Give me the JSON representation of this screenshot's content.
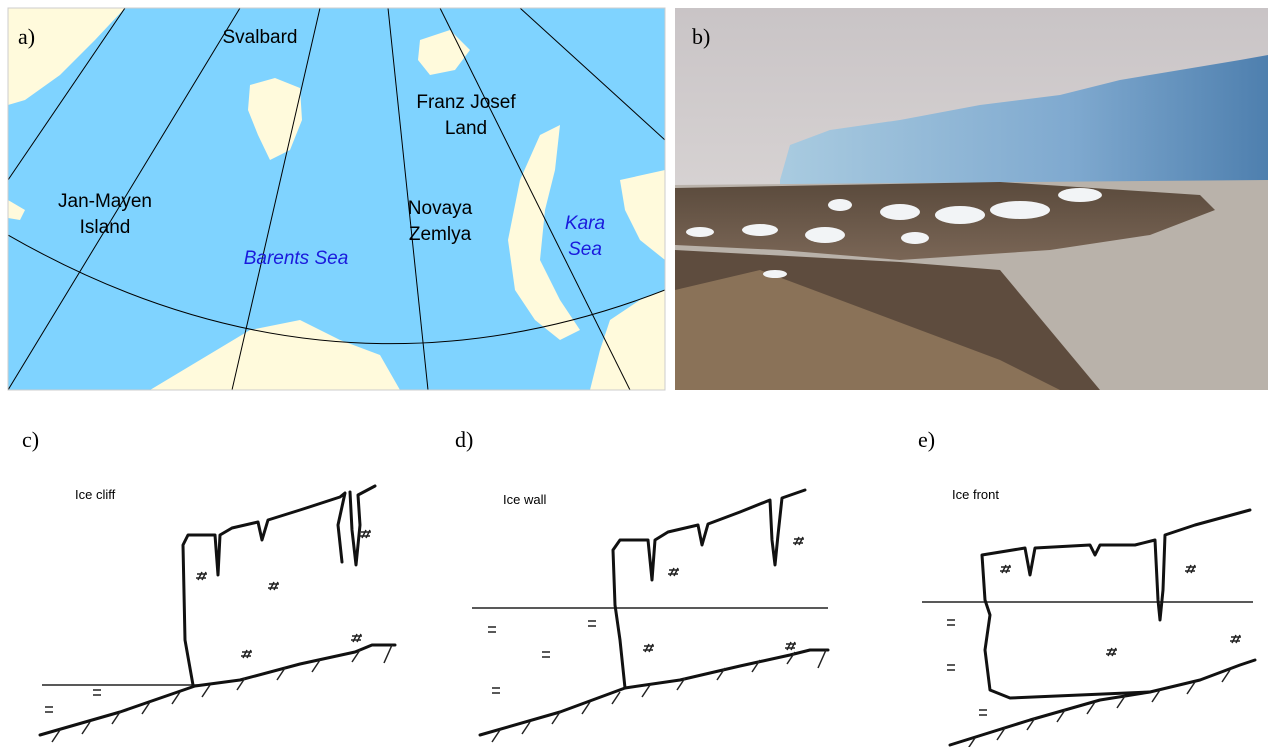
{
  "panel_labels": [
    "a)",
    "b)",
    "c)",
    "d)",
    "e)"
  ],
  "map": {
    "places": [
      {
        "lines": [
          "Svalbard"
        ]
      },
      {
        "lines": [
          "Franz Josef",
          "Land"
        ]
      },
      {
        "lines": [
          "Jan-Mayen",
          "Island"
        ]
      },
      {
        "lines": [
          "Novaya",
          "Zemlya"
        ]
      },
      {
        "lines": [
          "Barents Sea"
        ]
      },
      {
        "lines": [
          "Kara",
          "Sea"
        ]
      }
    ]
  },
  "sketches": [
    {
      "label": "Ice cliff"
    },
    {
      "label": "Ice wall"
    },
    {
      "label": "Ice front"
    }
  ]
}
